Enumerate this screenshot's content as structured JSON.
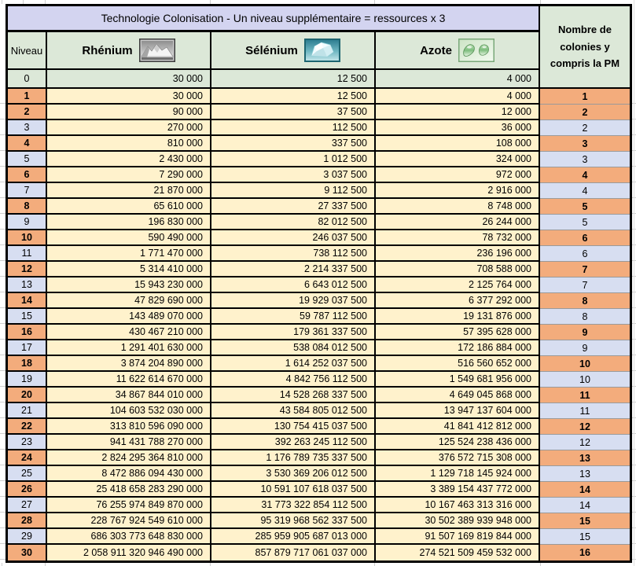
{
  "title": "Technologie Colonisation - Un niveau supplémentaire = ressources x 3",
  "columns": {
    "niveau": "Niveau",
    "rhenium": "Rhénium",
    "selenium": "Sélénium",
    "azote": "Azote",
    "colonies": "Nombre de colonies y compris la PM"
  },
  "icons": {
    "rhenium": "mountain-icon",
    "selenium": "iceberg-crystal-icon",
    "azote": "gas-bubbles-icon"
  },
  "colors": {
    "title_bg": "#D3D4F0",
    "header_bg": "#DCE8D8",
    "data_bg": "#FFF2CC",
    "highlight_orange": "#F3AC7C",
    "highlight_blue": "#D7DEF1",
    "border": "#000000",
    "thin_separator": "#9a9a9a"
  },
  "base_row": {
    "niveau": "0",
    "rhenium": "30 000",
    "selenium": "12 500",
    "azote": "4 000"
  },
  "rows": [
    {
      "niveau": "1",
      "rhenium": "30 000",
      "selenium": "12 500",
      "azote": "4 000",
      "colonies": "1",
      "style": "orange"
    },
    {
      "niveau": "2",
      "rhenium": "90 000",
      "selenium": "37 500",
      "azote": "12 000",
      "colonies": "2",
      "style": "orange"
    },
    {
      "niveau": "3",
      "rhenium": "270 000",
      "selenium": "112 500",
      "azote": "36 000",
      "colonies": "2",
      "style": "blue"
    },
    {
      "niveau": "4",
      "rhenium": "810 000",
      "selenium": "337 500",
      "azote": "108 000",
      "colonies": "3",
      "style": "orange"
    },
    {
      "niveau": "5",
      "rhenium": "2 430 000",
      "selenium": "1 012 500",
      "azote": "324 000",
      "colonies": "3",
      "style": "blue"
    },
    {
      "niveau": "6",
      "rhenium": "7 290 000",
      "selenium": "3 037 500",
      "azote": "972 000",
      "colonies": "4",
      "style": "orange"
    },
    {
      "niveau": "7",
      "rhenium": "21 870 000",
      "selenium": "9 112 500",
      "azote": "2 916 000",
      "colonies": "4",
      "style": "blue"
    },
    {
      "niveau": "8",
      "rhenium": "65 610 000",
      "selenium": "27 337 500",
      "azote": "8 748 000",
      "colonies": "5",
      "style": "orange"
    },
    {
      "niveau": "9",
      "rhenium": "196 830 000",
      "selenium": "82 012 500",
      "azote": "26 244 000",
      "colonies": "5",
      "style": "blue"
    },
    {
      "niveau": "10",
      "rhenium": "590 490 000",
      "selenium": "246 037 500",
      "azote": "78 732 000",
      "colonies": "6",
      "style": "orange"
    },
    {
      "niveau": "11",
      "rhenium": "1 771 470 000",
      "selenium": "738 112 500",
      "azote": "236 196 000",
      "colonies": "6",
      "style": "blue"
    },
    {
      "niveau": "12",
      "rhenium": "5 314 410 000",
      "selenium": "2 214 337 500",
      "azote": "708 588 000",
      "colonies": "7",
      "style": "orange"
    },
    {
      "niveau": "13",
      "rhenium": "15 943 230 000",
      "selenium": "6 643 012 500",
      "azote": "2 125 764 000",
      "colonies": "7",
      "style": "blue"
    },
    {
      "niveau": "14",
      "rhenium": "47 829 690 000",
      "selenium": "19 929 037 500",
      "azote": "6 377 292 000",
      "colonies": "8",
      "style": "orange"
    },
    {
      "niveau": "15",
      "rhenium": "143 489 070 000",
      "selenium": "59 787 112 500",
      "azote": "19 131 876 000",
      "colonies": "8",
      "style": "blue"
    },
    {
      "niveau": "16",
      "rhenium": "430 467 210 000",
      "selenium": "179 361 337 500",
      "azote": "57 395 628 000",
      "colonies": "9",
      "style": "orange"
    },
    {
      "niveau": "17",
      "rhenium": "1 291 401 630 000",
      "selenium": "538 084 012 500",
      "azote": "172 186 884 000",
      "colonies": "9",
      "style": "blue"
    },
    {
      "niveau": "18",
      "rhenium": "3 874 204 890 000",
      "selenium": "1 614 252 037 500",
      "azote": "516 560 652 000",
      "colonies": "10",
      "style": "orange"
    },
    {
      "niveau": "19",
      "rhenium": "11 622 614 670 000",
      "selenium": "4 842 756 112 500",
      "azote": "1 549 681 956 000",
      "colonies": "10",
      "style": "blue"
    },
    {
      "niveau": "20",
      "rhenium": "34 867 844 010 000",
      "selenium": "14 528 268 337 500",
      "azote": "4 649 045 868 000",
      "colonies": "11",
      "style": "orange"
    },
    {
      "niveau": "21",
      "rhenium": "104 603 532 030 000",
      "selenium": "43 584 805 012 500",
      "azote": "13 947 137 604 000",
      "colonies": "11",
      "style": "blue"
    },
    {
      "niveau": "22",
      "rhenium": "313 810 596 090 000",
      "selenium": "130 754 415 037 500",
      "azote": "41 841 412 812 000",
      "colonies": "12",
      "style": "orange"
    },
    {
      "niveau": "23",
      "rhenium": "941 431 788 270 000",
      "selenium": "392 263 245 112 500",
      "azote": "125 524 238 436 000",
      "colonies": "12",
      "style": "blue"
    },
    {
      "niveau": "24",
      "rhenium": "2 824 295 364 810 000",
      "selenium": "1 176 789 735 337 500",
      "azote": "376 572 715 308 000",
      "colonies": "13",
      "style": "orange"
    },
    {
      "niveau": "25",
      "rhenium": "8 472 886 094 430 000",
      "selenium": "3 530 369 206 012 500",
      "azote": "1 129 718 145 924 000",
      "colonies": "13",
      "style": "blue"
    },
    {
      "niveau": "26",
      "rhenium": "25 418 658 283 290 000",
      "selenium": "10 591 107 618 037 500",
      "azote": "3 389 154 437 772 000",
      "colonies": "14",
      "style": "orange"
    },
    {
      "niveau": "27",
      "rhenium": "76 255 974 849 870 000",
      "selenium": "31 773 322 854 112 500",
      "azote": "10 167 463 313 316 000",
      "colonies": "14",
      "style": "blue"
    },
    {
      "niveau": "28",
      "rhenium": "228 767 924 549 610 000",
      "selenium": "95 319 968 562 337 500",
      "azote": "30 502 389 939 948 000",
      "colonies": "15",
      "style": "orange"
    },
    {
      "niveau": "29",
      "rhenium": "686 303 773 648 830 000",
      "selenium": "285 959 905 687 013 000",
      "azote": "91 507 169 819 844 000",
      "colonies": "15",
      "style": "blue"
    },
    {
      "niveau": "30",
      "rhenium": "2 058 911 320 946 490 000",
      "selenium": "857 879 717 061 037 000",
      "azote": "274 521 509 459 532 000",
      "colonies": "16",
      "style": "orange"
    }
  ]
}
